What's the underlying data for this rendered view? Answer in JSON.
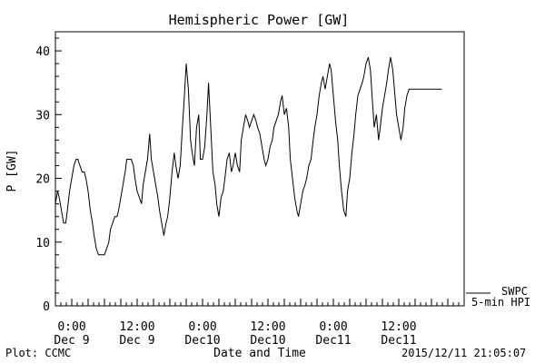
{
  "chart_data": {
    "type": "line",
    "title": "Hemispheric Power [GW]",
    "xlabel": "Date and Time",
    "ylabel": "P [GW]",
    "ylim": [
      0,
      43
    ],
    "yticks": [
      0,
      10,
      20,
      30,
      40
    ],
    "xlim_hours": [
      -3,
      72
    ],
    "xticks": [
      {
        "hour": 0,
        "top": "0:00",
        "bottom": "Dec 9"
      },
      {
        "hour": 12,
        "top": "12:00",
        "bottom": "Dec 9"
      },
      {
        "hour": 24,
        "top": "0:00",
        "bottom": "Dec10"
      },
      {
        "hour": 36,
        "top": "12:00",
        "bottom": "Dec10"
      },
      {
        "hour": 48,
        "top": "0:00",
        "bottom": "Dec11"
      },
      {
        "hour": 60,
        "top": "12:00",
        "bottom": "Dec11"
      }
    ],
    "legend": {
      "position": "bottom-right",
      "lines": [
        "SWPC",
        "5-min HPI"
      ]
    },
    "footer_left": "Plot: CCMC",
    "footer_right": "2015/12/11 21:05:07",
    "series": [
      {
        "x": [
          -3.0,
          -2.6,
          -2.3,
          -1.9,
          -1.5,
          -1.1,
          -0.8,
          -0.4,
          0.0,
          0.4,
          0.8,
          1.1,
          1.5,
          1.9,
          2.3,
          2.6,
          3.0,
          3.4,
          3.8,
          4.1,
          4.5,
          4.9,
          5.3,
          5.6,
          6.0,
          6.4,
          6.8,
          7.1,
          7.5,
          7.9,
          8.3,
          8.6,
          9.0,
          9.4,
          9.8,
          10.1,
          10.5,
          10.9,
          11.3,
          11.6,
          12.0,
          12.4,
          12.8,
          13.1,
          13.5,
          13.9,
          14.3,
          14.6,
          15.0,
          15.4,
          15.8,
          16.1,
          16.5,
          16.9,
          17.3,
          17.6,
          18.0,
          18.4,
          18.8,
          19.1,
          19.5,
          19.9,
          20.3,
          20.6,
          21.0,
          21.4,
          21.8,
          22.1,
          22.5,
          22.9,
          23.3,
          23.6,
          24.0,
          24.4,
          24.8,
          25.1,
          25.5,
          25.9,
          26.3,
          26.6,
          27.0,
          27.4,
          27.8,
          28.1,
          28.5,
          28.9,
          29.3,
          29.6,
          30.0,
          30.4,
          30.8,
          31.1,
          31.5,
          31.9,
          32.3,
          32.6,
          33.0,
          33.4,
          33.8,
          34.1,
          34.5,
          34.9,
          35.3,
          35.6,
          36.0,
          36.4,
          36.8,
          37.1,
          37.5,
          37.9,
          38.3,
          38.6,
          39.0,
          39.4,
          39.8,
          40.1,
          40.5,
          40.9,
          41.3,
          41.6,
          42.0,
          42.4,
          42.8,
          43.1,
          43.5,
          43.9,
          44.3,
          44.6,
          45.0,
          45.4,
          45.8,
          46.1,
          46.5,
          46.9,
          47.3,
          47.6,
          48.0,
          48.4,
          48.8,
          49.1,
          49.5,
          49.9,
          50.3,
          50.6,
          51.0,
          51.4,
          51.8,
          52.1,
          52.5,
          52.9,
          53.3,
          53.6,
          54.0,
          54.4,
          54.8,
          55.1,
          55.5,
          55.9,
          56.3,
          56.6,
          57.0,
          57.4,
          57.8,
          58.1,
          58.5,
          58.9,
          59.3,
          59.6,
          60.0,
          60.4,
          60.8,
          61.1,
          61.5,
          61.9,
          62.3,
          62.6,
          63.0,
          63.4,
          63.8,
          64.1,
          64.5,
          64.9,
          65.3,
          65.6,
          66.0,
          66.4,
          66.8,
          67.1,
          67.5,
          67.9
        ],
        "y": [
          16,
          18,
          17,
          15,
          13,
          13,
          15,
          18,
          20,
          22,
          23,
          23,
          22,
          21,
          21,
          20,
          18,
          15,
          13,
          11,
          9,
          8,
          8,
          8,
          8,
          9,
          10,
          12,
          13,
          14,
          14,
          15,
          17,
          19,
          21,
          23,
          23,
          23,
          22,
          20,
          18,
          17,
          16,
          19,
          21,
          23,
          27,
          23,
          21,
          19,
          17,
          15,
          13,
          11,
          13,
          14,
          17,
          21,
          24,
          22,
          20,
          22,
          28,
          32,
          38,
          34,
          26,
          24,
          22,
          28,
          30,
          23,
          23,
          25,
          30,
          35,
          28,
          21,
          19,
          16,
          14,
          17,
          18,
          20,
          23,
          24,
          21,
          22,
          24,
          22,
          21,
          26,
          28,
          30,
          29,
          28,
          29,
          30,
          29,
          28,
          27,
          25,
          23,
          22,
          23,
          25,
          26,
          28,
          29,
          30,
          32,
          33,
          30,
          31,
          28,
          23,
          20,
          17,
          15,
          14,
          16,
          18,
          19,
          20,
          22,
          23,
          26,
          28,
          30,
          33,
          35,
          36,
          34,
          36,
          38,
          37,
          33,
          29,
          26,
          22,
          18,
          15,
          14,
          18,
          20,
          24,
          27,
          30,
          33,
          34,
          35,
          36,
          38,
          39,
          37,
          33,
          28,
          30,
          26,
          28,
          31,
          33,
          35,
          37,
          39,
          37,
          33,
          30,
          28,
          26,
          28,
          31,
          33,
          34,
          34,
          34,
          34,
          34,
          34,
          34,
          34,
          34,
          34,
          34,
          34,
          34,
          34,
          34,
          34,
          34
        ]
      }
    ]
  }
}
